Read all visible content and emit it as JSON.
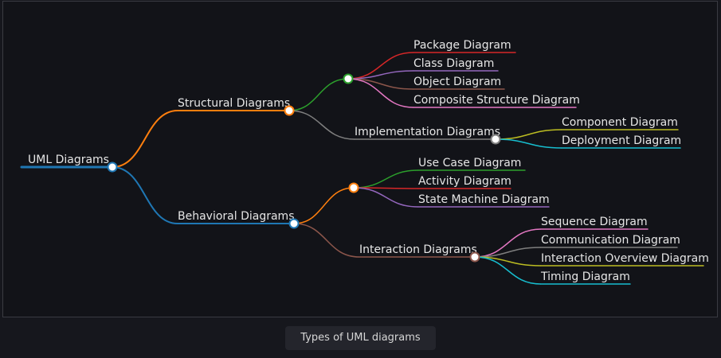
{
  "caption": "Types of UML diagrams",
  "colors": {
    "background": "#121318",
    "text": "#e6e6e6",
    "node_fill": "#ffffff"
  },
  "mindmap": {
    "label": "UML Diagrams",
    "color": "#1f77b4",
    "children": [
      {
        "label": "Structural Diagrams",
        "color": "#ff7f0e",
        "children": [
          {
            "label": "",
            "color": "#2ca02c",
            "children": [
              {
                "label": "Package Diagram",
                "color": "#d62728"
              },
              {
                "label": "Class Diagram",
                "color": "#9467bd"
              },
              {
                "label": "Object Diagram",
                "color": "#8c564b"
              },
              {
                "label": "Composite Structure Diagram",
                "color": "#e377c2"
              }
            ]
          },
          {
            "label": "Implementation Diagrams",
            "color": "#7f7f7f",
            "children": [
              {
                "label": "Component Diagram",
                "color": "#bcbd22"
              },
              {
                "label": "Deployment Diagram",
                "color": "#17becf"
              }
            ]
          }
        ]
      },
      {
        "label": "Behavioral Diagrams",
        "color": "#1f77b4",
        "children": [
          {
            "label": "",
            "color": "#ff7f0e",
            "children": [
              {
                "label": "Use Case Diagram",
                "color": "#2ca02c"
              },
              {
                "label": "Activity Diagram",
                "color": "#d62728"
              },
              {
                "label": "State Machine Diagram",
                "color": "#9467bd"
              }
            ]
          },
          {
            "label": "Interaction Diagrams",
            "color": "#8c564b",
            "children": [
              {
                "label": "Sequence Diagram",
                "color": "#e377c2"
              },
              {
                "label": "Communication Diagram",
                "color": "#7f7f7f"
              },
              {
                "label": "Interaction Overview Diagram",
                "color": "#bcbd22"
              },
              {
                "label": "Timing Diagram",
                "color": "#17becf"
              }
            ]
          }
        ]
      }
    ]
  }
}
